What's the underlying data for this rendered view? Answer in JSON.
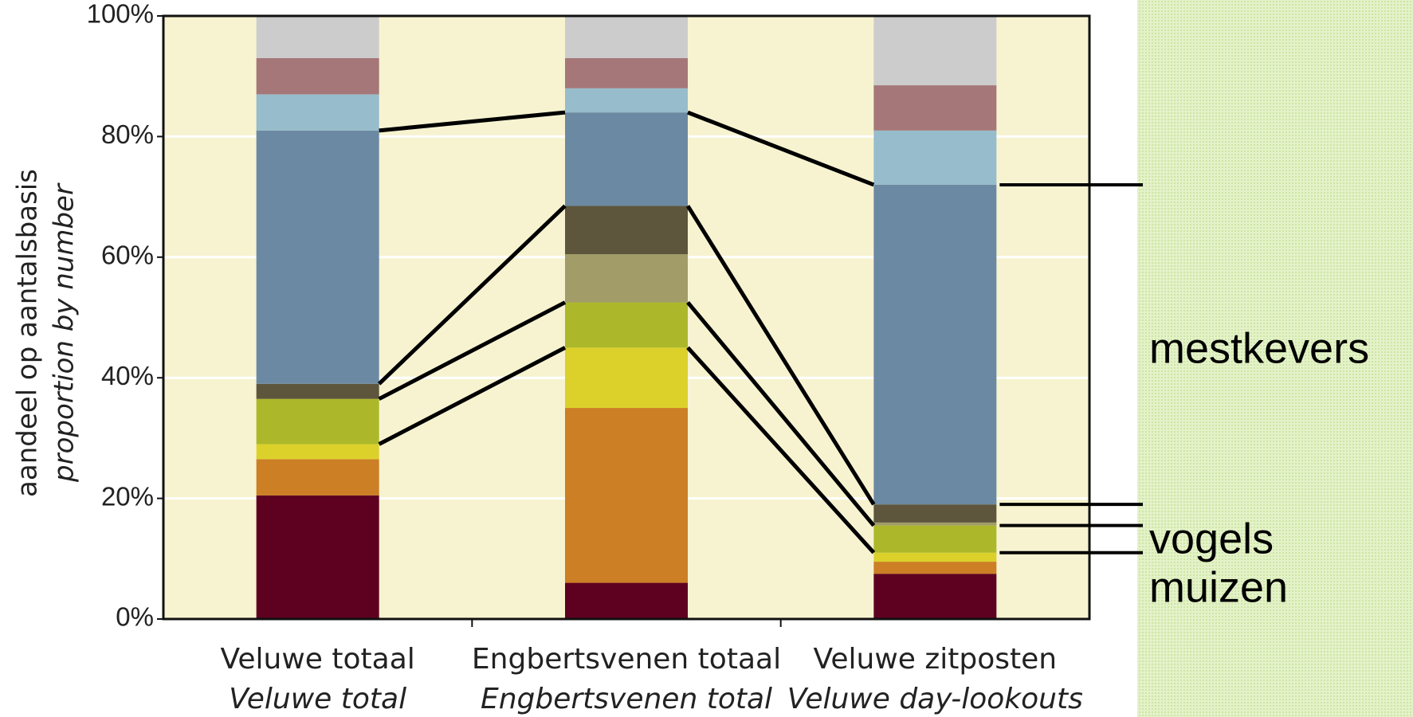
{
  "chart_data": {
    "type": "stacked_bar",
    "ylabel": [
      "aandeel op aantalsbasis",
      "proportion by number"
    ],
    "categories": [
      [
        "Veluwe totaal",
        "Veluwe total"
      ],
      [
        "Engbertsvenen totaal",
        "Engbertsvenen total"
      ],
      [
        "Veluwe zitposten",
        "Veluwe day-lookouts"
      ]
    ],
    "series": [
      {
        "color": "#5e0020",
        "values": [
          20.5,
          6,
          7.5
        ]
      },
      {
        "color": "#cc7f25",
        "values": [
          6,
          29,
          2
        ]
      },
      {
        "color": "#dcd12b",
        "values": [
          2.5,
          10,
          1.5
        ]
      },
      {
        "color": "#acb82a",
        "values": [
          7.5,
          7.5,
          4.5
        ]
      },
      {
        "color": "#a29c68",
        "values": [
          0,
          8,
          0.5
        ]
      },
      {
        "color": "#5d563c",
        "values": [
          2.5,
          8,
          3
        ]
      },
      {
        "color": "#6c89a3",
        "values": [
          42,
          15.5,
          53
        ]
      },
      {
        "color": "#97bccc",
        "values": [
          6,
          4,
          9
        ]
      },
      {
        "color": "#a57778",
        "values": [
          6,
          5,
          7.5
        ]
      },
      {
        "color": "#cccccc",
        "values": [
          7,
          7,
          11.5
        ]
      }
    ],
    "ylim": [
      0,
      100
    ],
    "yticks": [
      {
        "value": 0,
        "label": "0%"
      },
      {
        "value": 20,
        "label": "20%"
      },
      {
        "value": 40,
        "label": "40%"
      },
      {
        "value": 60,
        "label": "60%"
      },
      {
        "value": 80,
        "label": "80%"
      },
      {
        "value": 100,
        "label": "100%"
      }
    ],
    "grid": true,
    "annotations": [
      "mestkevers",
      "vogels",
      "muizen"
    ]
  }
}
